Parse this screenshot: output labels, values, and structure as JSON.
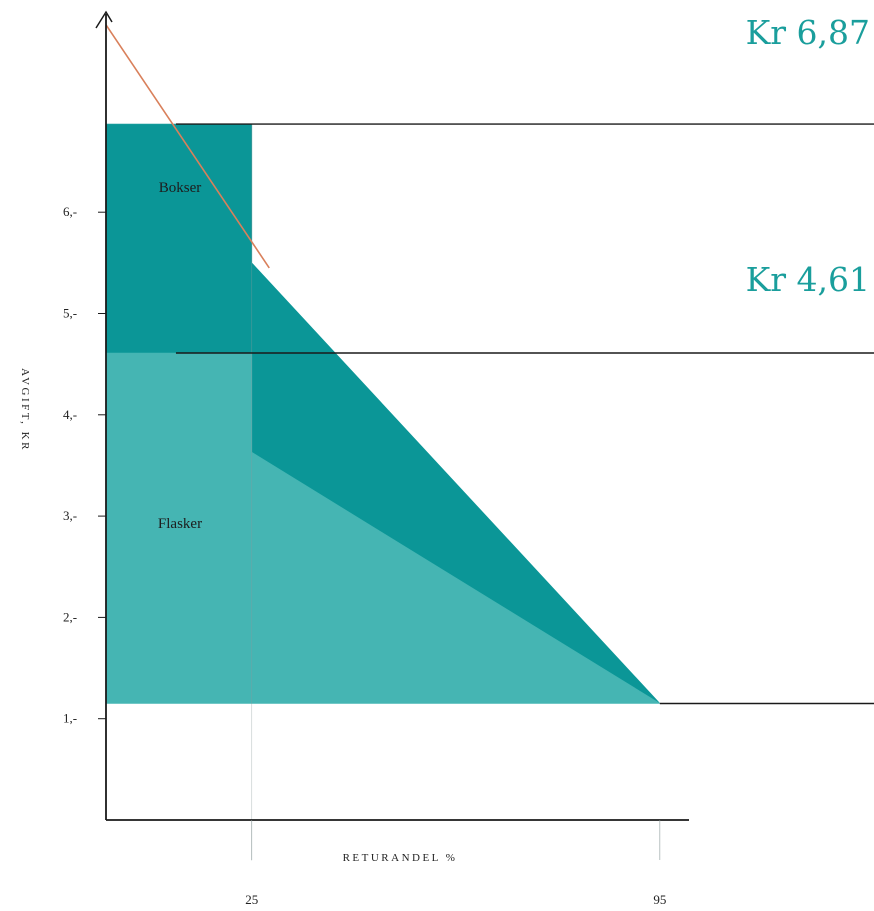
{
  "chart_data": {
    "type": "area",
    "title": "",
    "xlabel": "RETURANDEL %",
    "ylabel": "AVGIFT, KR",
    "x_ticks": [
      {
        "value": 25,
        "label": "25"
      },
      {
        "value": 95,
        "label": "95"
      }
    ],
    "y_ticks": [
      {
        "value": 1,
        "label": "1,-"
      },
      {
        "value": 2,
        "label": "2,-"
      },
      {
        "value": 3,
        "label": "3,-"
      },
      {
        "value": 4,
        "label": "4,-"
      },
      {
        "value": 5,
        "label": "5,-"
      },
      {
        "value": 6,
        "label": "6,-"
      }
    ],
    "xlim": [
      0,
      100
    ],
    "ylim": [
      0,
      7.85
    ],
    "series": [
      {
        "name": "Bokser",
        "color": "#0b9697",
        "points": [
          [
            0,
            6.87
          ],
          [
            25,
            6.87
          ],
          [
            25,
            5.5
          ],
          [
            95,
            1.15
          ],
          [
            25,
            3.63
          ],
          [
            25,
            4.61
          ],
          [
            0,
            4.61
          ]
        ]
      },
      {
        "name": "Flasker",
        "color": "#45b5b3",
        "points": [
          [
            0,
            4.61
          ],
          [
            25,
            4.61
          ],
          [
            25,
            3.63
          ],
          [
            95,
            1.15
          ],
          [
            0,
            1.15
          ]
        ]
      }
    ],
    "trend_line": {
      "color": "#d9805b",
      "points": [
        [
          0,
          7.85
        ],
        [
          28,
          5.45
        ]
      ]
    },
    "reference_lines": [
      {
        "y": 6.87,
        "label": "Kr 6,87",
        "x_start": 12
      },
      {
        "y": 4.61,
        "label": "Kr 4,61",
        "x_start": 12
      },
      {
        "y": 1.15,
        "label": "",
        "x_start": 95
      }
    ],
    "colors": {
      "label_teal": "#1a9e9c",
      "axis": "#1a1a1a"
    },
    "grid": false,
    "legend": "none"
  }
}
